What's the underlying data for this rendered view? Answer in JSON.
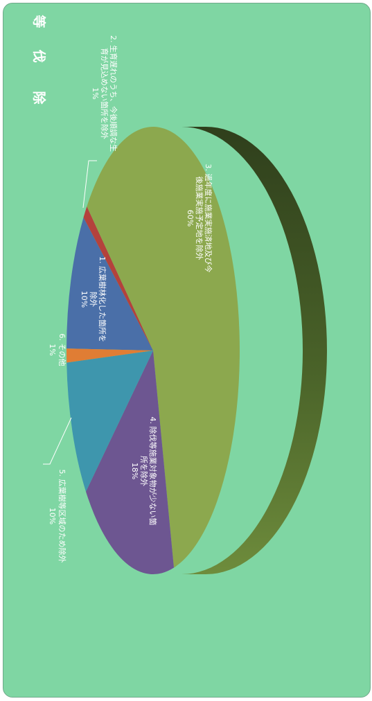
{
  "chart_data": {
    "type": "pie",
    "title_chars": [
      "除",
      "伐",
      "等"
    ],
    "slices": [
      {
        "label_lines": [
          "1. 広葉樹林化した箇所を",
          "除外"
        ],
        "pct_text": "10%",
        "value": 10,
        "color": "#4a6fa8"
      },
      {
        "label_lines": [
          "2. 生育遅れのうち、今後順調な生",
          "育が見込めない箇所を除外"
        ],
        "pct_text": "1%",
        "value": 1,
        "color": "#b4423c"
      },
      {
        "label_lines": [
          "3. 過年度に施業実施済地及び今",
          "後施業実施予定地を除外"
        ],
        "pct_text": "60%",
        "value": 60,
        "color": "#8ca84e"
      },
      {
        "label_lines": [
          "4. 除伐等施業対象物が少ない箇",
          "所を除外"
        ],
        "pct_text": "18%",
        "value": 18,
        "color": "#6d5691"
      },
      {
        "label_lines": [
          "5. 広葉樹等区域のため除外"
        ],
        "pct_text": "10%",
        "value": 10,
        "color": "#3e96ad"
      },
      {
        "label_lines": [
          "6. その他"
        ],
        "pct_text": "1%",
        "value": 1,
        "color": "#e07d34"
      }
    ]
  }
}
